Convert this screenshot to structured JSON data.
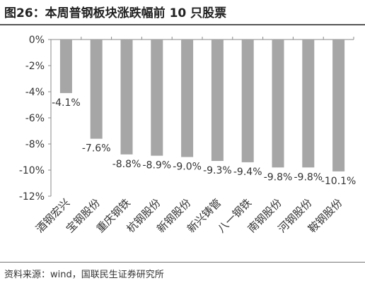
{
  "header": {
    "title": "图26：本周普钢板块涨跌幅前 10 只股票"
  },
  "footer": {
    "source": "资料来源：wind，国联民生证券研究所"
  },
  "chart_data": {
    "type": "bar",
    "title": "图26：本周普钢板块涨跌幅前 10 只股票",
    "xlabel": "",
    "ylabel": "",
    "ylim": [
      -12,
      0
    ],
    "yticks": [
      0,
      -2,
      -4,
      -6,
      -8,
      -10,
      -12
    ],
    "ytick_labels": [
      "0%",
      "-2%",
      "-4%",
      "-6%",
      "-8%",
      "-10%",
      "-12%"
    ],
    "categories": [
      "酒钢宏兴",
      "宝钢股份",
      "重庆钢铁",
      "杭钢股份",
      "新钢股份",
      "新兴铸管",
      "八一钢铁",
      "南钢股份",
      "河钢股份",
      "鞍钢股份"
    ],
    "values": [
      -4.1,
      -7.6,
      -8.8,
      -8.9,
      -9.0,
      -9.3,
      -9.4,
      -9.8,
      -9.8,
      -10.1
    ],
    "data_labels": [
      "-4.1%",
      "-7.6%",
      "-8.8%",
      "-8.9%",
      "-9.0%",
      "-9.3%",
      "-9.4%",
      "-9.8%",
      "-9.8%",
      "-10.1%"
    ],
    "bar_color": "#a6a6a6",
    "grid": false,
    "legend": "none"
  }
}
